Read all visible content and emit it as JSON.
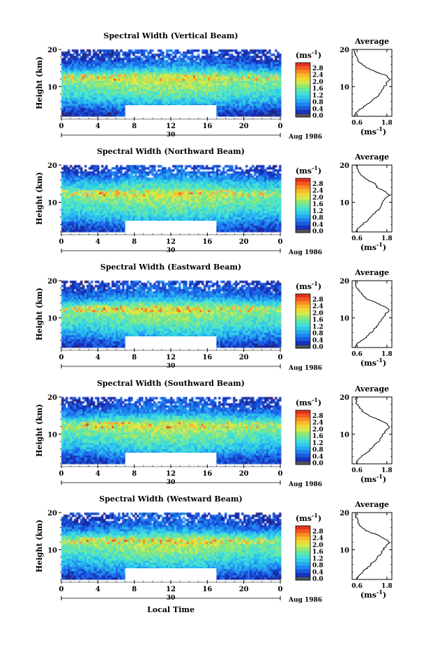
{
  "figure": {
    "xlabel": "Local Time",
    "colorbar_unit": "(ms",
    "colorbar_unit_exp": "-1",
    "avg_title": "Average",
    "avg_unit": "(ms",
    "avg_unit_exp": "-1",
    "date_label": "Aug 1986",
    "ylabel": "Height (km)"
  },
  "chart_data": [
    {
      "type": "heatmap",
      "title": "Spectral Width (Vertical Beam)",
      "xlabel": "Local Time",
      "ylabel": "Height (km)",
      "xticks": [
        "0",
        "4",
        "8",
        "12",
        "16",
        "20",
        "0"
      ],
      "xlim": [
        0,
        24
      ],
      "yticks": [
        "20",
        "10"
      ],
      "ylim": [
        2,
        20
      ],
      "day_label": "30",
      "colorbar_ticks": [
        "2.8",
        "2.4",
        "2.0",
        "1.6",
        "1.2",
        "0.8",
        "0.4",
        "0.0"
      ],
      "colorbar_range": [
        0,
        3.0
      ],
      "data_gap": {
        "x": [
          7,
          17
        ],
        "y": [
          2,
          5
        ]
      },
      "average_profile": {
        "xticks": [
          "0.6",
          "1.8"
        ],
        "xlim": [
          0.4,
          2.0
        ],
        "height_km": [
          2,
          3,
          4,
          5,
          6,
          7,
          8,
          9,
          10,
          11,
          12,
          13,
          14,
          15,
          16,
          17,
          18,
          19,
          20
        ],
        "width": [
          0.5,
          0.55,
          0.75,
          0.95,
          1.15,
          1.35,
          1.5,
          1.6,
          1.7,
          1.8,
          1.9,
          1.75,
          1.35,
          1.0,
          0.8,
          0.62,
          0.55,
          0.52,
          0.5
        ]
      }
    },
    {
      "type": "heatmap",
      "title": "Spectral Width (Northward Beam)",
      "xlabel": "Local Time",
      "ylabel": "Height (km)",
      "xticks": [
        "0",
        "4",
        "8",
        "12",
        "16",
        "20",
        "0"
      ],
      "xlim": [
        0,
        24
      ],
      "yticks": [
        "20",
        "10"
      ],
      "ylim": [
        2,
        20
      ],
      "day_label": "30",
      "colorbar_ticks": [
        "2.8",
        "2.4",
        "2.0",
        "1.6",
        "1.2",
        "0.8",
        "0.4",
        "0.0"
      ],
      "colorbar_range": [
        0,
        3.0
      ],
      "data_gap": {
        "x": [
          7,
          17
        ],
        "y": [
          2,
          5
        ]
      },
      "average_profile": {
        "xticks": [
          "0.6",
          "1.8"
        ],
        "xlim": [
          0.4,
          2.0
        ],
        "height_km": [
          2,
          3,
          4,
          5,
          6,
          7,
          8,
          9,
          10,
          11,
          12,
          13,
          14,
          15,
          16,
          17,
          18,
          19,
          20
        ],
        "width": [
          0.55,
          0.65,
          0.8,
          1.0,
          1.15,
          1.3,
          1.45,
          1.55,
          1.65,
          1.75,
          1.9,
          1.7,
          1.4,
          1.3,
          1.0,
          0.85,
          0.65,
          0.6,
          0.55
        ]
      }
    },
    {
      "type": "heatmap",
      "title": "Spectral Width (Eastward Beam)",
      "xlabel": "Local Time",
      "ylabel": "Height (km)",
      "xticks": [
        "0",
        "4",
        "8",
        "12",
        "16",
        "20",
        "0"
      ],
      "xlim": [
        0,
        24
      ],
      "yticks": [
        "20",
        "10"
      ],
      "ylim": [
        2,
        20
      ],
      "day_label": "30",
      "colorbar_ticks": [
        "2.8",
        "2.4",
        "2.0",
        "1.6",
        "1.2",
        "0.8",
        "0.4",
        "0.0"
      ],
      "colorbar_range": [
        0,
        3.0
      ],
      "data_gap": {
        "x": [
          7,
          17
        ],
        "y": [
          2,
          5
        ]
      },
      "average_profile": {
        "xticks": [
          "0.6",
          "1.8"
        ],
        "xlim": [
          0.4,
          2.0
        ],
        "height_km": [
          2,
          3,
          4,
          5,
          6,
          7,
          8,
          9,
          10,
          11,
          12,
          13,
          14,
          15,
          16,
          17,
          18,
          19,
          20
        ],
        "width": [
          0.5,
          0.6,
          0.8,
          1.0,
          1.15,
          1.3,
          1.45,
          1.55,
          1.65,
          1.75,
          1.9,
          1.7,
          1.4,
          1.0,
          0.85,
          0.7,
          0.6,
          0.55,
          0.5
        ]
      }
    },
    {
      "type": "heatmap",
      "title": "Spectral Width (Southward Beam)",
      "xlabel": "Local Time",
      "ylabel": "Height (km)",
      "xticks": [
        "0",
        "4",
        "8",
        "12",
        "16",
        "20",
        "0"
      ],
      "xlim": [
        0,
        24
      ],
      "yticks": [
        "20",
        "10"
      ],
      "ylim": [
        2,
        20
      ],
      "day_label": "30",
      "colorbar_ticks": [
        "2.8",
        "2.4",
        "2.0",
        "1.6",
        "1.2",
        "0.8",
        "0.4",
        "0.0"
      ],
      "colorbar_range": [
        0,
        3.0
      ],
      "data_gap": {
        "x": [
          7,
          17
        ],
        "y": [
          2,
          5
        ]
      },
      "average_profile": {
        "xticks": [
          "0.6",
          "1.8"
        ],
        "xlim": [
          0.4,
          2.0
        ],
        "height_km": [
          2,
          3,
          4,
          5,
          6,
          7,
          8,
          9,
          10,
          11,
          12,
          13,
          14,
          15,
          16,
          17,
          18,
          19,
          20
        ],
        "width": [
          0.55,
          0.65,
          0.8,
          1.0,
          1.15,
          1.3,
          1.45,
          1.55,
          1.65,
          1.75,
          1.9,
          1.75,
          1.4,
          1.1,
          0.85,
          0.7,
          0.6,
          0.55,
          0.55
        ]
      }
    },
    {
      "type": "heatmap",
      "title": "Spectral Width (Westward Beam)",
      "xlabel": "Local Time",
      "ylabel": "Height (km)",
      "xticks": [
        "0",
        "4",
        "8",
        "12",
        "16",
        "20",
        "0"
      ],
      "xlim": [
        0,
        24
      ],
      "yticks": [
        "20",
        "10"
      ],
      "ylim": [
        2,
        20
      ],
      "day_label": "30",
      "colorbar_ticks": [
        "2.8",
        "2.4",
        "2.0",
        "1.6",
        "1.2",
        "0.8",
        "0.4",
        "0.0"
      ],
      "colorbar_range": [
        0,
        3.0
      ],
      "data_gap": {
        "x": [
          7,
          17
        ],
        "y": [
          2,
          5
        ]
      },
      "average_profile": {
        "xticks": [
          "0.6",
          "1.8"
        ],
        "xlim": [
          0.4,
          2.0
        ],
        "height_km": [
          2,
          3,
          4,
          5,
          6,
          7,
          8,
          9,
          10,
          11,
          12,
          13,
          14,
          15,
          16,
          17,
          18,
          19,
          20
        ],
        "width": [
          0.55,
          0.65,
          0.8,
          1.0,
          1.15,
          1.3,
          1.45,
          1.55,
          1.65,
          1.75,
          1.9,
          1.7,
          1.4,
          1.0,
          0.8,
          0.65,
          0.6,
          0.55,
          0.55
        ]
      }
    }
  ]
}
